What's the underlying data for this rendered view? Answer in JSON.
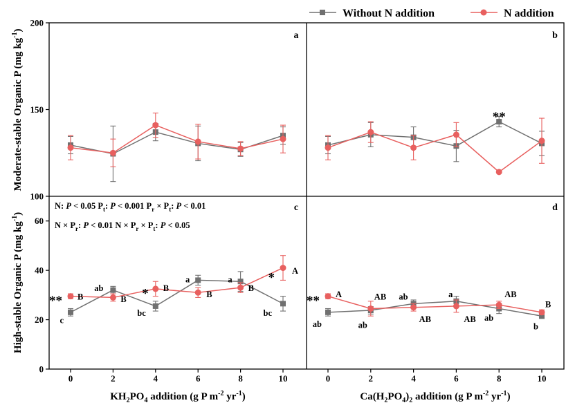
{
  "legend": {
    "without": "Without N addition",
    "with": "N addition"
  },
  "colors": {
    "without": "#707070",
    "with": "#e8605f",
    "axis": "#000000"
  },
  "axes": {
    "ylabel_top": "Moderate-stable Organic P",
    "ylabel_top_unit": "(mg kg",
    "ylabel_bottom": "High-stable Organic P",
    "ylabel_bottom_unit": "(mg kg",
    "unit_sup": "-1",
    "unit_close": ")",
    "xlabel_left": {
      "pre": "KH",
      "sub1": "2",
      "mid": "PO",
      "sub2": "4",
      "post": " addition (g P m",
      "sup1": "-2",
      "post2": " yr",
      "sup2": "-1",
      "end": ")"
    },
    "xlabel_right": {
      "pre": "Ca(H",
      "sub1": "2",
      "mid": "PO",
      "sub2": "4",
      "mid2": ")",
      "sub3": "2",
      "post": " addition (g P m",
      "sup1": "-2",
      "post2": " yr",
      "sup2": "-1",
      "end": ")"
    },
    "x_ticks": [
      "0",
      "2",
      "4",
      "6",
      "8",
      "10"
    ],
    "top_y_ticks": [
      "100",
      "150",
      "200"
    ],
    "bottom_y_ticks": [
      "0",
      "20",
      "40",
      "60"
    ]
  },
  "panels": {
    "a": "a",
    "b": "b",
    "c": "c",
    "d": "d"
  },
  "stats": {
    "line1": [
      {
        "t": "N: ",
        "i": false
      },
      {
        "t": "P",
        "i": true
      },
      {
        "t": " < 0.05    P",
        "i": false
      },
      {
        "t": "t",
        "sub": true
      },
      {
        "t": ": ",
        "i": false
      },
      {
        "t": "P",
        "i": true
      },
      {
        "t": " < 0.001    P",
        "i": false
      },
      {
        "t": "r",
        "sub": true
      },
      {
        "t": " × P",
        "i": false
      },
      {
        "t": "t",
        "sub": true
      },
      {
        "t": ": ",
        "i": false
      },
      {
        "t": "P",
        "i": true
      },
      {
        "t": "  < 0.01",
        "i": false
      }
    ],
    "line2": [
      {
        "t": "N × P",
        "i": false
      },
      {
        "t": "r",
        "sub": true
      },
      {
        "t": ": ",
        "i": false
      },
      {
        "t": "P",
        "i": true
      },
      {
        "t": " < 0.01    N × P",
        "i": false
      },
      {
        "t": "r",
        "sub": true
      },
      {
        "t": " × P",
        "i": false
      },
      {
        "t": "t",
        "sub": true
      },
      {
        "t": ": ",
        "i": false
      },
      {
        "t": "P",
        "i": true
      },
      {
        "t": "  < 0.05",
        "i": false
      }
    ]
  },
  "chart_data": [
    {
      "panel": "a",
      "type": "line",
      "x": [
        0,
        2,
        4,
        6,
        8,
        10
      ],
      "ylim": [
        100,
        200
      ],
      "series": [
        {
          "name": "Without N addition",
          "values": [
            129.5,
            124.5,
            137,
            130.5,
            127,
            135
          ],
          "err": [
            5,
            16,
            5,
            10,
            4,
            5
          ]
        },
        {
          "name": "N addition",
          "values": [
            128,
            125,
            141,
            131.5,
            127.5,
            133
          ],
          "err": [
            7,
            8,
            7,
            10,
            4,
            8
          ]
        }
      ],
      "annotations": []
    },
    {
      "panel": "b",
      "type": "line",
      "x": [
        0,
        2,
        4,
        6,
        8,
        10
      ],
      "ylim": [
        100,
        200
      ],
      "series": [
        {
          "name": "Without N addition",
          "values": [
            129.5,
            135.5,
            134,
            129,
            143,
            130.5
          ],
          "err": [
            5,
            7,
            6,
            9,
            3,
            7
          ]
        },
        {
          "name": "N addition",
          "values": [
            128,
            137,
            128,
            135.5,
            114,
            132
          ],
          "err": [
            7,
            6,
            7,
            7,
            0,
            13
          ]
        }
      ],
      "annotations": [
        {
          "x": 8,
          "text": "**",
          "kind": "star",
          "y": 147
        }
      ]
    },
    {
      "panel": "c",
      "type": "line",
      "x": [
        0,
        2,
        4,
        6,
        8,
        10
      ],
      "ylim": [
        0,
        70
      ],
      "series": [
        {
          "name": "Without N addition",
          "values": [
            23,
            32,
            25.5,
            36,
            35.5,
            26.5
          ],
          "err": [
            1.5,
            1.5,
            2,
            2,
            4,
            3
          ]
        },
        {
          "name": "N addition",
          "values": [
            29.5,
            29,
            32.5,
            31,
            33,
            41
          ],
          "err": [
            1,
            1.5,
            3,
            2,
            2,
            5
          ]
        }
      ],
      "annotations": [
        {
          "x": 0,
          "text": "c",
          "kind": "letter",
          "y": 20,
          "dx": -10
        },
        {
          "x": 2,
          "text": "ab",
          "kind": "letter",
          "y": 33,
          "dx": -14
        },
        {
          "x": 4,
          "text": "bc",
          "kind": "letter",
          "y": 23,
          "dx": -14
        },
        {
          "x": 6,
          "text": "a",
          "kind": "letter",
          "y": 36.5,
          "dx": -12
        },
        {
          "x": 8,
          "text": "a",
          "kind": "letter",
          "y": 36.5,
          "dx": -12
        },
        {
          "x": 10,
          "text": "bc",
          "kind": "letter",
          "y": 23,
          "dx": -16
        },
        {
          "x": 0,
          "text": "B",
          "kind": "letter",
          "y": 29.5,
          "dx": 10
        },
        {
          "x": 2,
          "text": "B",
          "kind": "letter",
          "y": 28.5,
          "dx": 11
        },
        {
          "x": 4,
          "text": "B",
          "kind": "letter",
          "y": 33,
          "dx": 11
        },
        {
          "x": 6,
          "text": "B",
          "kind": "letter",
          "y": 30.5,
          "dx": 12
        },
        {
          "x": 8,
          "text": "B",
          "kind": "letter",
          "y": 33,
          "dx": 11
        },
        {
          "x": 10,
          "text": "A",
          "kind": "letter",
          "y": 40,
          "dx": 13
        },
        {
          "x": 0,
          "text": "**",
          "kind": "star",
          "y": 28.5,
          "dx": -12
        },
        {
          "x": 4,
          "text": "*",
          "kind": "star",
          "y": 31.5,
          "dx": -10
        },
        {
          "x": 10,
          "text": "*",
          "kind": "star",
          "y": 38,
          "dx": -12
        }
      ]
    },
    {
      "panel": "d",
      "type": "line",
      "x": [
        0,
        2,
        4,
        6,
        8,
        10
      ],
      "ylim": [
        0,
        70
      ],
      "series": [
        {
          "name": "Without N addition",
          "values": [
            23,
            23.8,
            26.5,
            27.5,
            24.5,
            21.5
          ],
          "err": [
            1.5,
            1.5,
            1.5,
            2,
            2,
            1
          ]
        },
        {
          "name": "N addition",
          "values": [
            29.5,
            24.5,
            25,
            25.5,
            26,
            23
          ],
          "err": [
            1,
            3,
            1.5,
            2.5,
            1.5,
            1
          ]
        }
      ],
      "annotations": [
        {
          "x": 0,
          "text": "ab",
          "kind": "letter",
          "y": 18.5,
          "dx": -9
        },
        {
          "x": 2,
          "text": "ab",
          "kind": "letter",
          "y": 18,
          "dx": -5
        },
        {
          "x": 4,
          "text": "ab",
          "kind": "letter",
          "y": 29.5,
          "dx": -8
        },
        {
          "x": 6,
          "text": "a",
          "kind": "letter",
          "y": 30.5,
          "dx": -5
        },
        {
          "x": 8,
          "text": "ab",
          "kind": "letter",
          "y": 21,
          "dx": -8
        },
        {
          "x": 10,
          "text": "b",
          "kind": "letter",
          "y": 17.5,
          "dx": -5
        },
        {
          "x": 0,
          "text": "A",
          "kind": "letter",
          "y": 30.5,
          "dx": 11
        },
        {
          "x": 2,
          "text": "AB",
          "kind": "letter",
          "y": 29.5,
          "dx": 5
        },
        {
          "x": 4,
          "text": "AB",
          "kind": "letter",
          "y": 20.5,
          "dx": 8
        },
        {
          "x": 6,
          "text": "AB",
          "kind": "letter",
          "y": 20.5,
          "dx": 11
        },
        {
          "x": 8,
          "text": "AB",
          "kind": "letter",
          "y": 30.5,
          "dx": 8
        },
        {
          "x": 10,
          "text": "B",
          "kind": "letter",
          "y": 26.5,
          "dx": 5
        },
        {
          "x": 0,
          "text": "**",
          "kind": "star",
          "y": 28.5,
          "dx": -12
        }
      ]
    }
  ]
}
